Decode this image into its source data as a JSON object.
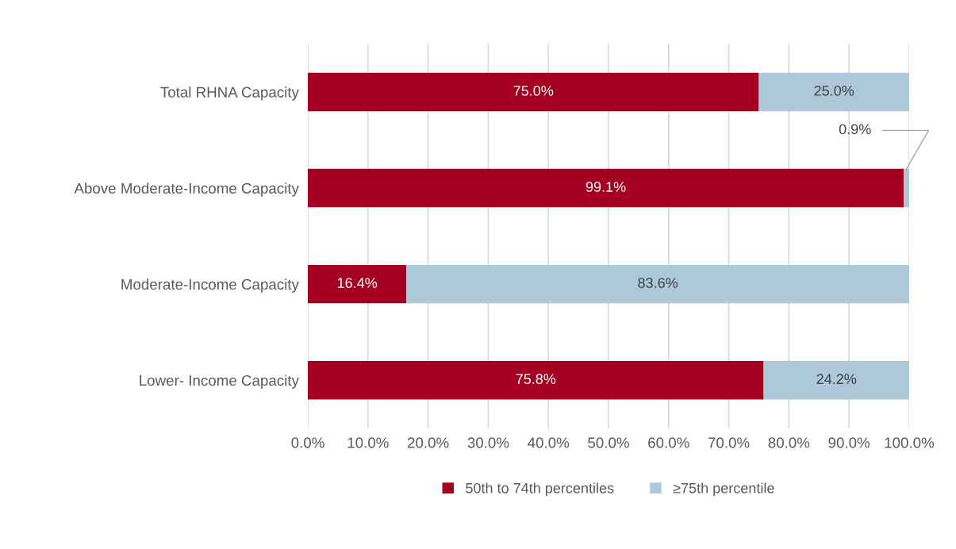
{
  "chart_data": {
    "type": "bar",
    "orientation": "horizontal",
    "stacked": true,
    "categories": [
      "Total RHNA Capacity",
      "Above Moderate-Income Capacity",
      "Moderate-Income Capacity",
      "Lower- Income Capacity"
    ],
    "series": [
      {
        "name": "50th to 74th percentiles",
        "color": "#a50021",
        "values": [
          75.0,
          99.1,
          16.4,
          75.8
        ],
        "value_labels": [
          "75.0%",
          "99.1%",
          "16.4%",
          "75.8%"
        ]
      },
      {
        "name": "≥75th percentile",
        "color": "#adc8d8",
        "values": [
          25.0,
          0.9,
          83.6,
          24.2
        ],
        "value_labels": [
          "25.0%",
          "0.9%",
          "83.6%",
          "24.2%"
        ]
      }
    ],
    "xlim": [
      0,
      100
    ],
    "xticks": [
      {
        "value": 0,
        "label": "0.0%"
      },
      {
        "value": 10,
        "label": "10.0%"
      },
      {
        "value": 20,
        "label": "20.0%"
      },
      {
        "value": 30,
        "label": "30.0%"
      },
      {
        "value": 40,
        "label": "40.0%"
      },
      {
        "value": 50,
        "label": "50.0%"
      },
      {
        "value": 60,
        "label": "60.0%"
      },
      {
        "value": 70,
        "label": "70.0%"
      },
      {
        "value": 80,
        "label": "80.0%"
      },
      {
        "value": 90,
        "label": "90.0%"
      },
      {
        "value": 100,
        "label": "100.0%"
      }
    ],
    "grid": "x",
    "legend": "bottom"
  }
}
